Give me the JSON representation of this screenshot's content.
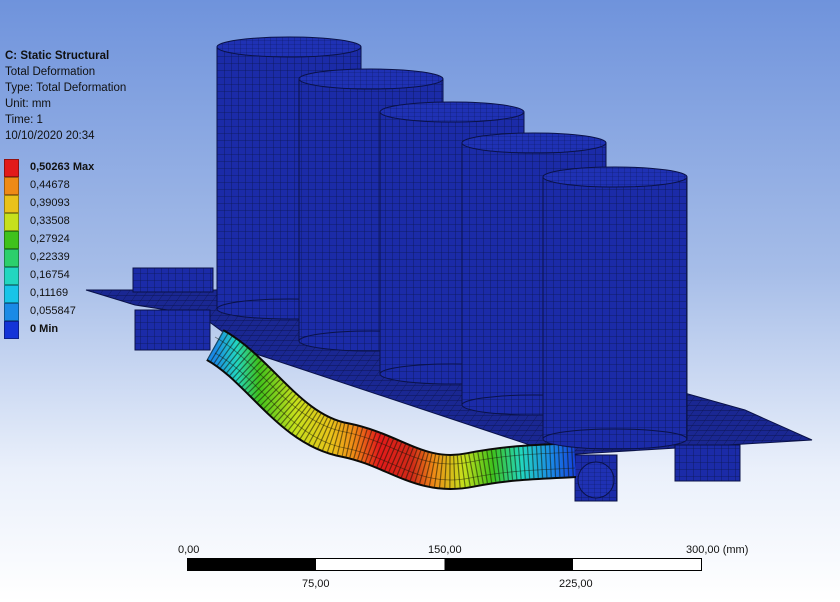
{
  "info": {
    "system": "C: Static Structural",
    "result_name": "Total Deformation",
    "type": "Type: Total Deformation",
    "unit": "Unit: mm",
    "time": "Time: 1",
    "date": "10/10/2020 20:34"
  },
  "legend": [
    {
      "label": "0,50263 Max",
      "color": "#e21a1a",
      "bold": true
    },
    {
      "label": "0,44678",
      "color": "#ee8a16",
      "bold": false
    },
    {
      "label": "0,39093",
      "color": "#e9c21a",
      "bold": false
    },
    {
      "label": "0,33508",
      "color": "#c6e01c",
      "bold": false
    },
    {
      "label": "0,27924",
      "color": "#3fc21c",
      "bold": false
    },
    {
      "label": "0,22339",
      "color": "#2ccf6c",
      "bold": false
    },
    {
      "label": "0,16754",
      "color": "#22d6c0",
      "bold": false
    },
    {
      "label": "0,11169",
      "color": "#18c4e8",
      "bold": false
    },
    {
      "label": "0,055847",
      "color": "#1a8ae6",
      "bold": false
    },
    {
      "label": "0 Min",
      "color": "#1434d8",
      "bold": true
    }
  ],
  "scale_bar": {
    "top_labels": [
      "0,00",
      "150,00",
      "300,00 (mm)"
    ],
    "bottom_labels": [
      "75,00",
      "225,00"
    ]
  },
  "colors": {
    "mesh_blue": "#1a2aa6",
    "mesh_line": "#0a1450"
  }
}
